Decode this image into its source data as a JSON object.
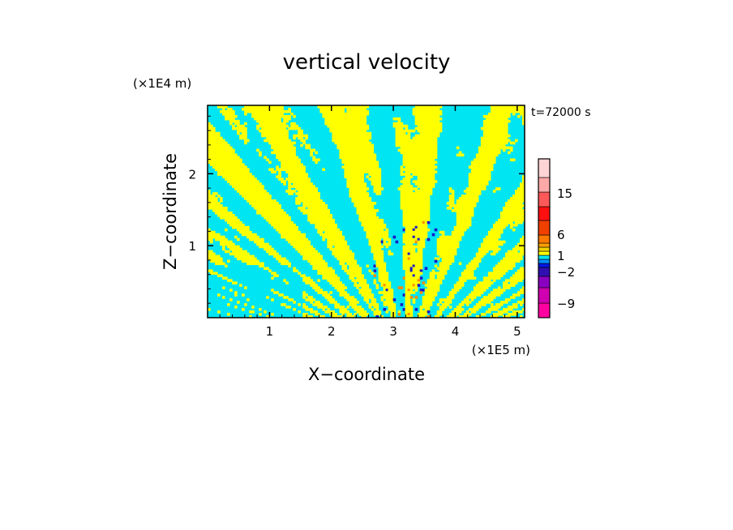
{
  "chart_data": {
    "type": "heatmap",
    "title": "vertical velocity",
    "xlabel": "X−coordinate",
    "ylabel": "Z−coordinate",
    "x_unit": "(×1E5 m)",
    "y_unit": "(×1E4 m)",
    "time_label": "t=72000 s",
    "xlim": [
      0,
      5.12
    ],
    "ylim": [
      0,
      2.95
    ],
    "x_ticks": [
      1,
      2,
      3,
      4,
      5
    ],
    "y_ticks": [
      1,
      2
    ],
    "x_tick_labels": [
      "1",
      "2",
      "3",
      "4",
      "5"
    ],
    "y_tick_labels": [
      "1",
      "2"
    ],
    "grid": false,
    "field_colors": {
      "weak_negative": "#00e5f2",
      "weak_positive": "#ffff00",
      "strong_negative": "#1818c8",
      "strong_positive": "#ff8c00"
    },
    "colorbar": {
      "levels": [
        -12,
        -9,
        -6,
        -3,
        -2,
        -1,
        -0.5,
        0,
        0.5,
        1,
        2,
        3,
        6,
        9,
        12,
        15,
        18,
        24
      ],
      "colors": [
        "#ff00a0",
        "#d000b0",
        "#8a00c0",
        "#3010b0",
        "#0018e0",
        "#0090ff",
        "#00e5f2",
        "#ffff00",
        "#f0d000",
        "#ffa000",
        "#ff7800",
        "#f04000",
        "#ff1010",
        "#ff5858",
        "#ffa8a8",
        "#ffd4d4",
        "#fff0f0"
      ],
      "tick_values": [
        -9,
        -2,
        1,
        6,
        15
      ],
      "tick_labels": [
        "−9",
        "−2",
        "1",
        "6",
        "15"
      ]
    }
  }
}
